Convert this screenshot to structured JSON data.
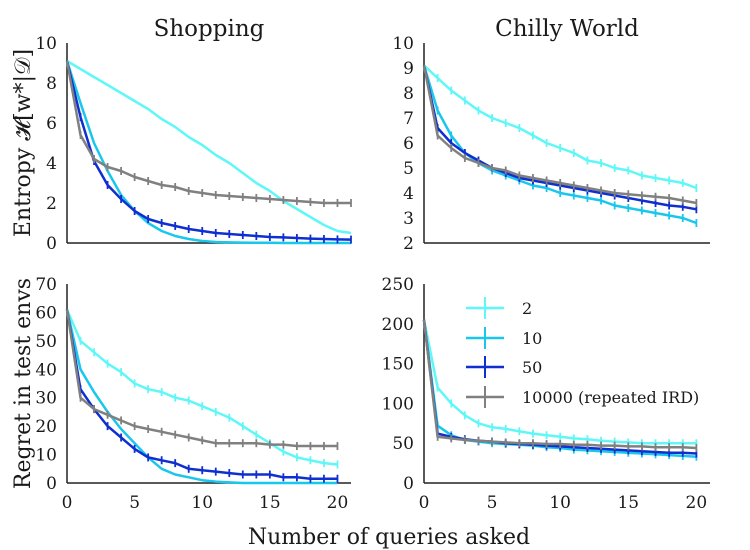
{
  "figure": {
    "xlabel": "Number of queries asked"
  },
  "legend": [
    {
      "label": "2",
      "color": "#5ff7f7"
    },
    {
      "label": "10",
      "color": "#19c7ec"
    },
    {
      "label": "50",
      "color": "#0f2fd0"
    },
    {
      "label": "10000 (repeated IRD)",
      "color": "#808080"
    }
  ],
  "chart_data": [
    {
      "type": "line",
      "panel": "top-left",
      "title": "Shopping",
      "xlabel": "",
      "ylabel": "Entropy 𝓗[w*|𝒟]",
      "xlim": [
        0,
        21
      ],
      "ylim": [
        0,
        10
      ],
      "xticks": [
        0,
        5,
        10,
        15,
        20
      ],
      "yticks": [
        0,
        2,
        4,
        6,
        8,
        10
      ],
      "show_xticklabels": false,
      "x": [
        0,
        1,
        2,
        3,
        4,
        5,
        6,
        7,
        8,
        9,
        10,
        11,
        12,
        13,
        14,
        15,
        16,
        17,
        18,
        19,
        20,
        21
      ],
      "series": [
        {
          "name": "2",
          "values": [
            9.1,
            8.7,
            8.3,
            7.9,
            7.5,
            7.1,
            6.7,
            6.2,
            5.8,
            5.3,
            4.9,
            4.4,
            4.0,
            3.5,
            3.0,
            2.6,
            2.1,
            1.7,
            1.3,
            0.9,
            0.6,
            0.5
          ],
          "error_bars": false
        },
        {
          "name": "10",
          "values": [
            9.1,
            7.0,
            5.0,
            3.6,
            2.4,
            1.6,
            1.0,
            0.6,
            0.35,
            0.2,
            0.1,
            0.05,
            0.03,
            0.02,
            0.01,
            0.01,
            0.0,
            0.0,
            0.0,
            0.0,
            0.0,
            0.0
          ],
          "error_bars": false
        },
        {
          "name": "50",
          "values": [
            9.1,
            6.3,
            4.1,
            2.9,
            2.2,
            1.6,
            1.2,
            1.0,
            0.85,
            0.7,
            0.6,
            0.5,
            0.45,
            0.4,
            0.35,
            0.3,
            0.28,
            0.25,
            0.22,
            0.2,
            0.18,
            0.17
          ],
          "error_bars": true
        },
        {
          "name": "10000 (repeated IRD)",
          "values": [
            9.1,
            5.4,
            4.2,
            3.8,
            3.6,
            3.3,
            3.1,
            2.9,
            2.8,
            2.6,
            2.5,
            2.4,
            2.35,
            2.3,
            2.25,
            2.2,
            2.15,
            2.1,
            2.05,
            2.0,
            2.0,
            2.0
          ],
          "error_bars": true
        }
      ]
    },
    {
      "type": "line",
      "panel": "top-right",
      "title": "Chilly World",
      "xlabel": "",
      "ylabel": "",
      "xlim": [
        0,
        21
      ],
      "ylim": [
        2,
        10
      ],
      "xticks": [
        0,
        5,
        10,
        15,
        20
      ],
      "yticks": [
        2,
        3,
        4,
        5,
        6,
        7,
        8,
        9,
        10
      ],
      "show_xticklabels": false,
      "x": [
        0,
        1,
        2,
        3,
        4,
        5,
        6,
        7,
        8,
        9,
        10,
        11,
        12,
        13,
        14,
        15,
        16,
        17,
        18,
        19,
        20
      ],
      "series": [
        {
          "name": "2",
          "values": [
            9.1,
            8.6,
            8.1,
            7.7,
            7.3,
            7.0,
            6.8,
            6.6,
            6.3,
            6.0,
            5.8,
            5.6,
            5.3,
            5.2,
            5.0,
            4.9,
            4.7,
            4.6,
            4.5,
            4.4,
            4.2
          ],
          "error_bars": true
        },
        {
          "name": "10",
          "values": [
            9.1,
            7.3,
            6.3,
            5.6,
            5.2,
            4.9,
            4.7,
            4.5,
            4.3,
            4.2,
            4.0,
            3.9,
            3.8,
            3.7,
            3.5,
            3.4,
            3.3,
            3.2,
            3.1,
            3.0,
            2.8
          ],
          "error_bars": true
        },
        {
          "name": "50",
          "values": [
            9.1,
            6.6,
            6.0,
            5.6,
            5.3,
            5.0,
            4.8,
            4.6,
            4.5,
            4.4,
            4.3,
            4.2,
            4.1,
            4.0,
            3.9,
            3.8,
            3.7,
            3.6,
            3.5,
            3.45,
            3.35
          ],
          "error_bars": true
        },
        {
          "name": "10000 (repeated IRD)",
          "values": [
            9.1,
            6.3,
            5.8,
            5.4,
            5.2,
            5.0,
            4.9,
            4.7,
            4.6,
            4.5,
            4.4,
            4.3,
            4.2,
            4.1,
            4.0,
            3.95,
            3.9,
            3.85,
            3.8,
            3.7,
            3.6
          ],
          "error_bars": true
        }
      ]
    },
    {
      "type": "line",
      "panel": "bottom-left",
      "title": "",
      "xlabel": "",
      "ylabel": "Regret in test envs",
      "xlim": [
        0,
        21
      ],
      "ylim": [
        0,
        70
      ],
      "xticks": [
        0,
        5,
        10,
        15,
        20
      ],
      "yticks": [
        0,
        10,
        20,
        30,
        40,
        50,
        60,
        70
      ],
      "show_xticklabels": true,
      "x": [
        0,
        1,
        2,
        3,
        4,
        5,
        6,
        7,
        8,
        9,
        10,
        11,
        12,
        13,
        14,
        15,
        16,
        17,
        18,
        19,
        20
      ],
      "series": [
        {
          "name": "2",
          "values": [
            61,
            50,
            46,
            42,
            39,
            35,
            33,
            32,
            30,
            29,
            27,
            25,
            23,
            20,
            17,
            14,
            11,
            9,
            8,
            7,
            6.5
          ],
          "error_bars": true
        },
        {
          "name": "10",
          "values": [
            61,
            40,
            32,
            25,
            19,
            14,
            9,
            5,
            3,
            2,
            1,
            0.5,
            0.2,
            0,
            0,
            0,
            0,
            0,
            0,
            0,
            0
          ],
          "error_bars": false
        },
        {
          "name": "50",
          "values": [
            61,
            33,
            26,
            20,
            16,
            12,
            9,
            8,
            7,
            5,
            4.5,
            4,
            3.5,
            3,
            3,
            3,
            2,
            2,
            1.5,
            1.5,
            1.5
          ],
          "error_bars": true
        },
        {
          "name": "10000 (repeated IRD)",
          "values": [
            61,
            30,
            26,
            24,
            22,
            20,
            19,
            18,
            17,
            16,
            15,
            14,
            14,
            14,
            14,
            13.5,
            13.5,
            13,
            13,
            13,
            13
          ],
          "error_bars": true
        }
      ]
    },
    {
      "type": "line",
      "panel": "bottom-right",
      "title": "",
      "xlabel": "",
      "ylabel": "",
      "xlim": [
        0,
        21
      ],
      "ylim": [
        0,
        250
      ],
      "xticks": [
        0,
        5,
        10,
        15,
        20
      ],
      "yticks": [
        0,
        50,
        100,
        150,
        200,
        250
      ],
      "show_xticklabels": true,
      "x": [
        0,
        1,
        2,
        3,
        4,
        5,
        6,
        7,
        8,
        9,
        10,
        11,
        12,
        13,
        14,
        15,
        16,
        17,
        18,
        19,
        20
      ],
      "series": [
        {
          "name": "2",
          "values": [
            205,
            120,
            100,
            85,
            75,
            70,
            68,
            65,
            62,
            60,
            58,
            56,
            55,
            53,
            52,
            51,
            50,
            50,
            50,
            50,
            50
          ],
          "error_bars": true
        },
        {
          "name": "10",
          "values": [
            205,
            72,
            60,
            54,
            52,
            50,
            49,
            48,
            47,
            45,
            44,
            42,
            41,
            40,
            39,
            38,
            37,
            36,
            35,
            34,
            33
          ],
          "error_bars": true
        },
        {
          "name": "50",
          "values": [
            205,
            62,
            58,
            55,
            53,
            52,
            50,
            49,
            48,
            47,
            46,
            45,
            44,
            43,
            42,
            41,
            40,
            39,
            38,
            38,
            37
          ],
          "error_bars": true
        },
        {
          "name": "10000 (repeated IRD)",
          "values": [
            205,
            58,
            56,
            54,
            53,
            52,
            51,
            50,
            50,
            49,
            49,
            48,
            48,
            47,
            47,
            46,
            46,
            45,
            45,
            45,
            44
          ],
          "error_bars": true
        }
      ]
    }
  ]
}
